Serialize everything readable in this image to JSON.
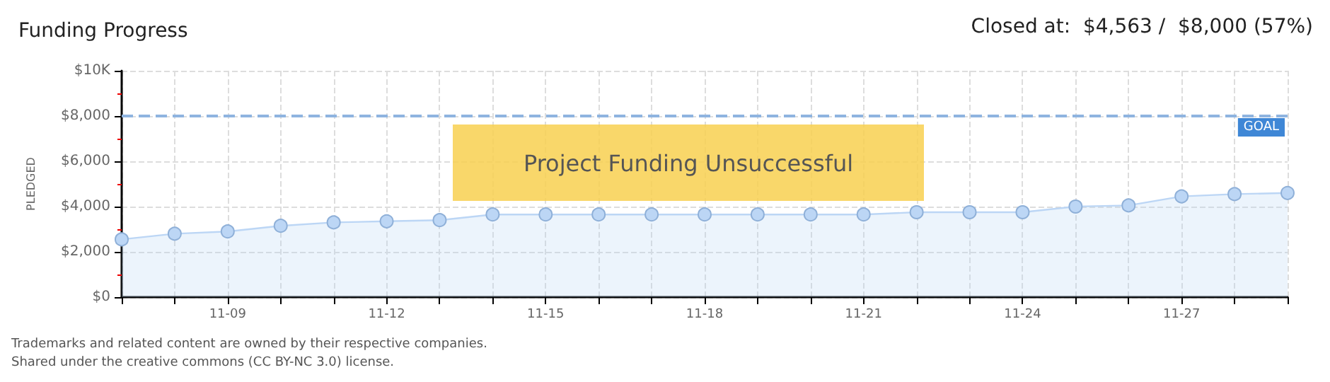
{
  "chart_data": {
    "type": "area",
    "title": "Funding Progress",
    "ylabel": "PLEDGED",
    "annotations": [
      "Closed at:  $4,563 /  $8,000 (57%)",
      "Project Funding Unsuccessful",
      "Trademarks and related content are owned by their respective companies.",
      "Shared under the creative commons (CC BY-NC 3.0) license."
    ],
    "categories": [
      null,
      null,
      "11-09",
      null,
      null,
      "11-12",
      null,
      null,
      "11-15",
      null,
      null,
      "11-18",
      null,
      null,
      "11-21",
      null,
      null,
      "11-24",
      null,
      null,
      "11-27",
      null,
      null
    ],
    "series": [
      {
        "color": "#bcd6f5",
        "values": [
          2550,
          2800,
          2900,
          3150,
          3300,
          3350,
          3400,
          3650,
          3650,
          3650,
          3650,
          3650,
          3650,
          3650,
          3650,
          3750,
          3750,
          3750,
          4000,
          4050,
          4450,
          4550,
          4600
        ]
      }
    ],
    "ylim": [
      0,
      10000
    ],
    "yticks": [
      {
        "value": 0,
        "label": "$0"
      },
      {
        "value": 2000,
        "label": "$2,000"
      },
      {
        "value": 4000,
        "label": "$4,000"
      },
      {
        "value": 6000,
        "label": "$6,000"
      },
      {
        "value": 8000,
        "label": "$8,000"
      },
      {
        "value": 10000,
        "label": "$10K"
      }
    ],
    "ref_lines": [
      {
        "axis": "y",
        "value": 8000,
        "label": "GOAL",
        "color": "#8fb4e0",
        "line_style": "dashed"
      }
    ],
    "grid": true,
    "marker": "circle"
  }
}
